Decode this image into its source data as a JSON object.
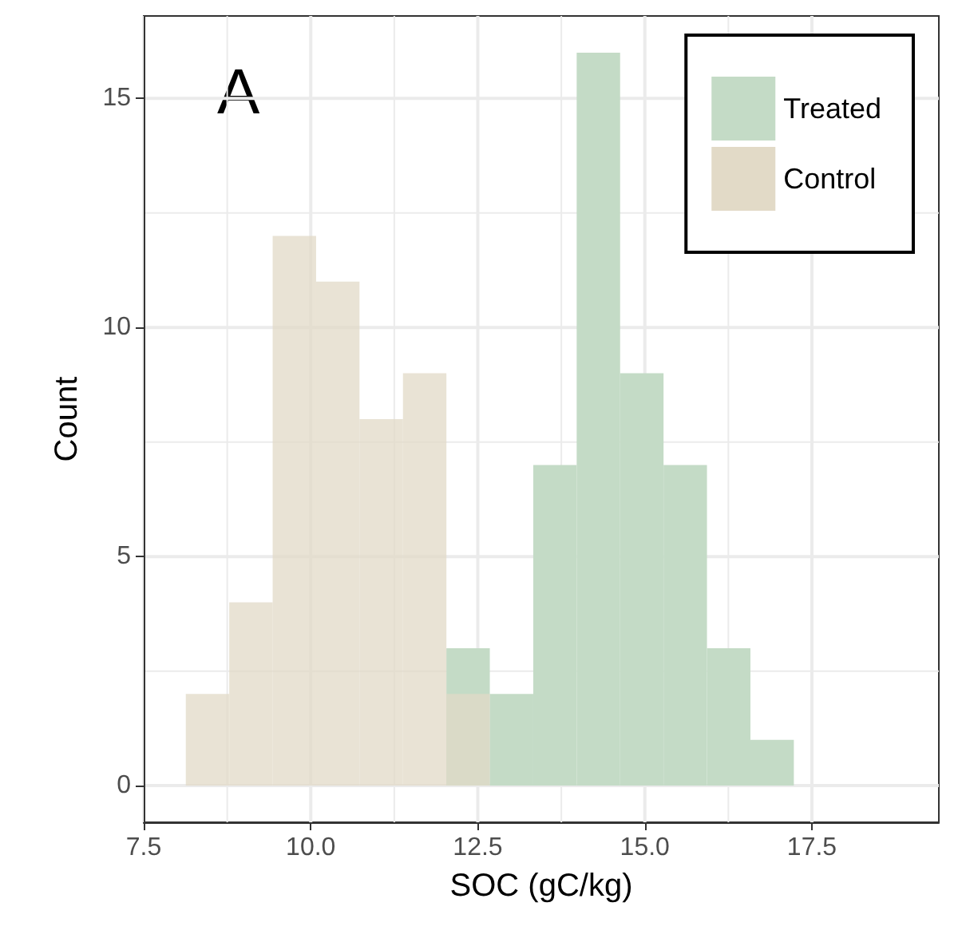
{
  "chart_data": {
    "type": "histogram",
    "xlabel": "SOC (gC/kg)",
    "ylabel": "Count",
    "annotations": [
      "A"
    ],
    "bins": [
      8.13,
      8.78,
      9.43,
      10.08,
      10.73,
      11.38,
      12.03,
      12.68,
      13.33,
      13.98,
      14.63,
      15.28,
      15.93,
      16.58,
      17.23
    ],
    "series": [
      {
        "name": "Treated",
        "color": "#c4dbc6",
        "values": [
          0,
          0,
          0,
          0,
          0,
          0,
          3,
          2,
          7,
          16,
          9,
          7,
          3,
          1
        ]
      },
      {
        "name": "Control",
        "color": "#e2dac7",
        "values": [
          2,
          4,
          12,
          11,
          8,
          9,
          2,
          0,
          0,
          0,
          0,
          0,
          0,
          0
        ]
      }
    ],
    "xlim": [
      7.5,
      19.4
    ],
    "xticks": [
      {
        "value": 7.5,
        "label": "7.5"
      },
      {
        "value": 10,
        "label": "10.0"
      },
      {
        "value": 12.5,
        "label": "12.5"
      },
      {
        "value": 15,
        "label": "15.0"
      },
      {
        "value": 17.5,
        "label": "17.5"
      }
    ],
    "ylim": [
      -0.8,
      16.8
    ],
    "yticks": [
      0,
      5,
      10,
      15
    ],
    "grid": true,
    "legend": "top right"
  }
}
